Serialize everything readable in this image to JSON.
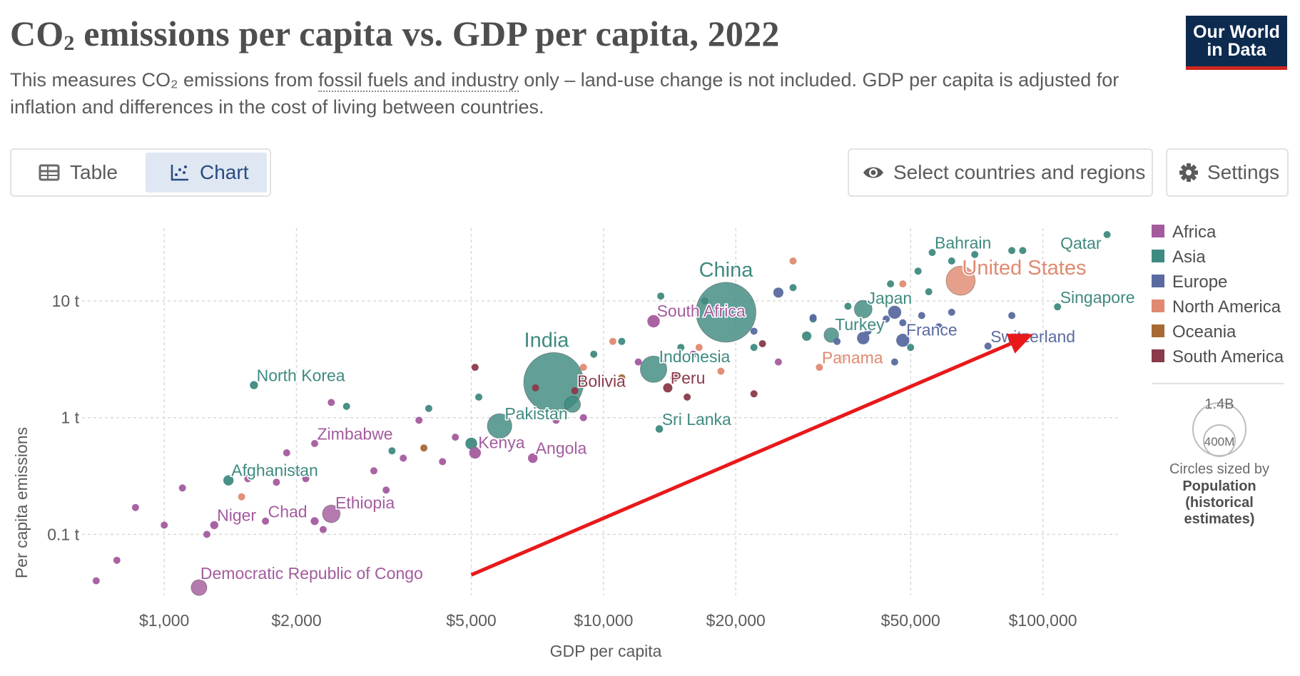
{
  "header": {
    "title": "CO₂ emissions per capita vs. GDP per capita, 2022",
    "subtitle_before": "This measures CO₂ emissions from ",
    "subtitle_link": "fossil fuels and industry",
    "subtitle_after": " only – land-use change is not included. GDP per capita is adjusted for inflation and differences in the cost of living between countries.",
    "logo_line1": "Our World",
    "logo_line2": "in Data"
  },
  "controls": {
    "tab_table": "Table",
    "tab_chart": "Chart",
    "select_label": "Select countries and regions",
    "settings_label": "Settings"
  },
  "colors": {
    "Africa": "#a45b9e",
    "Asia": "#3f8a80",
    "Europe": "#5a6aa0",
    "North America": "#e08a71",
    "Oceania": "#a86a34",
    "South America": "#8a3a4a",
    "arrow": "#e8191a"
  },
  "chart_data": {
    "type": "scatter",
    "title": "CO₂ emissions per capita vs. GDP per capita, 2022",
    "xlabel": "GDP per capita",
    "ylabel": "Per capita emissions",
    "x_scale": "log",
    "y_scale": "log",
    "xlim": [
      650,
      150000
    ],
    "ylim": [
      0.03,
      42
    ],
    "x_ticks": [
      {
        "value": 1000,
        "label": "$1,000"
      },
      {
        "value": 2000,
        "label": "$2,000"
      },
      {
        "value": 5000,
        "label": "$5,000"
      },
      {
        "value": 10000,
        "label": "$10,000"
      },
      {
        "value": 20000,
        "label": "$20,000"
      },
      {
        "value": 50000,
        "label": "$50,000"
      },
      {
        "value": 100000,
        "label": "$100,000"
      }
    ],
    "y_ticks": [
      {
        "value": 0.1,
        "label": "0.1 t"
      },
      {
        "value": 1,
        "label": "1 t"
      },
      {
        "value": 10,
        "label": "10 t"
      }
    ],
    "grid": true,
    "legend_position": "right",
    "legend": [
      "Africa",
      "Asia",
      "Europe",
      "North America",
      "Oceania",
      "South America"
    ],
    "size_legend": {
      "title": "Circles sized by",
      "variable_line1": "Population",
      "variable_line2": "(historical",
      "variable_line3": "estimates)",
      "large_label": "1.4B",
      "small_label": "400M"
    },
    "annotation": {
      "type": "arrow",
      "from": [
        5000,
        0.045
      ],
      "to": [
        95000,
        5.2
      ]
    },
    "labeled_points": [
      {
        "name": "Qatar",
        "gdp": 140000,
        "co2": 37,
        "pop_m": 2.7,
        "region": "Asia"
      },
      {
        "name": "Bahrain",
        "gdp": 56000,
        "co2": 26,
        "pop_m": 1.5,
        "region": "Asia"
      },
      {
        "name": "United States",
        "gdp": 65000,
        "co2": 14.9,
        "pop_m": 333,
        "region": "North America"
      },
      {
        "name": "China",
        "gdp": 19000,
        "co2": 8.0,
        "pop_m": 1425,
        "region": "Asia"
      },
      {
        "name": "Japan",
        "gdp": 39000,
        "co2": 8.5,
        "pop_m": 124,
        "region": "Asia"
      },
      {
        "name": "Singapore",
        "gdp": 108000,
        "co2": 8.9,
        "pop_m": 6,
        "region": "Asia"
      },
      {
        "name": "South Africa",
        "gdp": 13000,
        "co2": 6.7,
        "pop_m": 60,
        "region": "Africa"
      },
      {
        "name": "Turkey",
        "gdp": 33000,
        "co2": 5.1,
        "pop_m": 85,
        "region": "Asia"
      },
      {
        "name": "France",
        "gdp": 48000,
        "co2": 4.6,
        "pop_m": 68,
        "region": "Europe"
      },
      {
        "name": "Switzerland",
        "gdp": 75000,
        "co2": 4.1,
        "pop_m": 9,
        "region": "Europe"
      },
      {
        "name": "India",
        "gdp": 7700,
        "co2": 2.0,
        "pop_m": 1417,
        "region": "Asia"
      },
      {
        "name": "Indonesia",
        "gdp": 13000,
        "co2": 2.6,
        "pop_m": 275,
        "region": "Asia"
      },
      {
        "name": "Panama",
        "gdp": 31000,
        "co2": 2.7,
        "pop_m": 4.4,
        "region": "North America"
      },
      {
        "name": "Peru",
        "gdp": 14000,
        "co2": 1.8,
        "pop_m": 34,
        "region": "South America"
      },
      {
        "name": "Bolivia",
        "gdp": 8600,
        "co2": 1.7,
        "pop_m": 12,
        "region": "South America"
      },
      {
        "name": "North Korea",
        "gdp": 1600,
        "co2": 1.9,
        "pop_m": 26,
        "region": "Asia"
      },
      {
        "name": "Pakistan",
        "gdp": 5800,
        "co2": 0.85,
        "pop_m": 236,
        "region": "Asia"
      },
      {
        "name": "Sri Lanka",
        "gdp": 13400,
        "co2": 0.8,
        "pop_m": 22,
        "region": "Asia"
      },
      {
        "name": "Zimbabwe",
        "gdp": 2200,
        "co2": 0.6,
        "pop_m": 16,
        "region": "Africa"
      },
      {
        "name": "Kenya",
        "gdp": 5100,
        "co2": 0.5,
        "pop_m": 54,
        "region": "Africa"
      },
      {
        "name": "Angola",
        "gdp": 6900,
        "co2": 0.45,
        "pop_m": 36,
        "region": "Africa"
      },
      {
        "name": "Afghanistan",
        "gdp": 1400,
        "co2": 0.29,
        "pop_m": 41,
        "region": "Asia"
      },
      {
        "name": "Ethiopia",
        "gdp": 2400,
        "co2": 0.15,
        "pop_m": 123,
        "region": "Africa"
      },
      {
        "name": "Niger",
        "gdp": 1300,
        "co2": 0.12,
        "pop_m": 26,
        "region": "Africa"
      },
      {
        "name": "Chad",
        "gdp": 1700,
        "co2": 0.13,
        "pop_m": 18,
        "region": "Africa"
      },
      {
        "name": "Democratic Republic of Congo",
        "gdp": 1200,
        "co2": 0.035,
        "pop_m": 99,
        "region": "Africa"
      }
    ],
    "other_points": [
      {
        "gdp": 700,
        "co2": 0.04,
        "pop_m": 5,
        "region": "Africa"
      },
      {
        "gdp": 780,
        "co2": 0.06,
        "pop_m": 5,
        "region": "Africa"
      },
      {
        "gdp": 860,
        "co2": 0.17,
        "pop_m": 5,
        "region": "Africa"
      },
      {
        "gdp": 1000,
        "co2": 0.12,
        "pop_m": 5,
        "region": "Africa"
      },
      {
        "gdp": 1100,
        "co2": 0.25,
        "pop_m": 5,
        "region": "Africa"
      },
      {
        "gdp": 1250,
        "co2": 0.1,
        "pop_m": 5,
        "region": "Africa"
      },
      {
        "gdp": 1550,
        "co2": 0.3,
        "pop_m": 5,
        "region": "Africa"
      },
      {
        "gdp": 1800,
        "co2": 0.28,
        "pop_m": 5,
        "region": "Africa"
      },
      {
        "gdp": 1900,
        "co2": 0.5,
        "pop_m": 5,
        "region": "Africa"
      },
      {
        "gdp": 2100,
        "co2": 0.3,
        "pop_m": 5,
        "region": "Africa"
      },
      {
        "gdp": 2200,
        "co2": 0.13,
        "pop_m": 25,
        "region": "Africa"
      },
      {
        "gdp": 2300,
        "co2": 0.11,
        "pop_m": 5,
        "region": "Africa"
      },
      {
        "gdp": 2400,
        "co2": 1.35,
        "pop_m": 5,
        "region": "Africa"
      },
      {
        "gdp": 3000,
        "co2": 0.35,
        "pop_m": 5,
        "region": "Africa"
      },
      {
        "gdp": 3200,
        "co2": 0.24,
        "pop_m": 15,
        "region": "Africa"
      },
      {
        "gdp": 3500,
        "co2": 0.45,
        "pop_m": 5,
        "region": "Africa"
      },
      {
        "gdp": 3800,
        "co2": 0.95,
        "pop_m": 5,
        "region": "Africa"
      },
      {
        "gdp": 4300,
        "co2": 0.42,
        "pop_m": 5,
        "region": "Africa"
      },
      {
        "gdp": 4600,
        "co2": 0.68,
        "pop_m": 5,
        "region": "Africa"
      },
      {
        "gdp": 7800,
        "co2": 0.95,
        "pop_m": 5,
        "region": "Africa"
      },
      {
        "gdp": 9000,
        "co2": 1.0,
        "pop_m": 5,
        "region": "Africa"
      },
      {
        "gdp": 12000,
        "co2": 3.0,
        "pop_m": 5,
        "region": "Africa"
      },
      {
        "gdp": 16000,
        "co2": 3.5,
        "pop_m": 5,
        "region": "Africa"
      },
      {
        "gdp": 25000,
        "co2": 3.0,
        "pop_m": 5,
        "region": "Africa"
      },
      {
        "gdp": 2000,
        "co2": 0.36,
        "pop_m": 5,
        "region": "Asia"
      },
      {
        "gdp": 2600,
        "co2": 1.25,
        "pop_m": 5,
        "region": "Asia"
      },
      {
        "gdp": 3300,
        "co2": 0.52,
        "pop_m": 5,
        "region": "Asia"
      },
      {
        "gdp": 4000,
        "co2": 1.2,
        "pop_m": 5,
        "region": "Asia"
      },
      {
        "gdp": 5200,
        "co2": 1.5,
        "pop_m": 5,
        "region": "Asia"
      },
      {
        "gdp": 5000,
        "co2": 0.6,
        "pop_m": 55,
        "region": "Asia"
      },
      {
        "gdp": 8500,
        "co2": 1.3,
        "pop_m": 100,
        "region": "Asia"
      },
      {
        "gdp": 9500,
        "co2": 3.5,
        "pop_m": 5,
        "region": "Asia"
      },
      {
        "gdp": 11000,
        "co2": 4.5,
        "pop_m": 5,
        "region": "Asia"
      },
      {
        "gdp": 13500,
        "co2": 11.0,
        "pop_m": 5,
        "region": "Asia"
      },
      {
        "gdp": 15000,
        "co2": 4.0,
        "pop_m": 5,
        "region": "Asia"
      },
      {
        "gdp": 17000,
        "co2": 10.0,
        "pop_m": 5,
        "region": "Asia"
      },
      {
        "gdp": 22000,
        "co2": 4.0,
        "pop_m": 5,
        "region": "Asia"
      },
      {
        "gdp": 27000,
        "co2": 13.0,
        "pop_m": 5,
        "region": "Asia"
      },
      {
        "gdp": 29000,
        "co2": 5.0,
        "pop_m": 35,
        "region": "Asia"
      },
      {
        "gdp": 30000,
        "co2": 7.0,
        "pop_m": 5,
        "region": "Asia"
      },
      {
        "gdp": 36000,
        "co2": 9.0,
        "pop_m": 5,
        "region": "Asia"
      },
      {
        "gdp": 45000,
        "co2": 14.0,
        "pop_m": 5,
        "region": "Asia"
      },
      {
        "gdp": 52000,
        "co2": 18.0,
        "pop_m": 5,
        "region": "Asia"
      },
      {
        "gdp": 55000,
        "co2": 12.0,
        "pop_m": 5,
        "region": "Asia"
      },
      {
        "gdp": 62000,
        "co2": 22.0,
        "pop_m": 5,
        "region": "Asia"
      },
      {
        "gdp": 70000,
        "co2": 25.0,
        "pop_m": 5,
        "region": "Asia"
      },
      {
        "gdp": 85000,
        "co2": 27.0,
        "pop_m": 5,
        "region": "Asia"
      },
      {
        "gdp": 90000,
        "co2": 27.0,
        "pop_m": 5,
        "region": "Asia"
      },
      {
        "gdp": 50000,
        "co2": 4.0,
        "pop_m": 5,
        "region": "Asia"
      },
      {
        "gdp": 34000,
        "co2": 4.5,
        "pop_m": 5,
        "region": "Europe"
      },
      {
        "gdp": 37000,
        "co2": 6.0,
        "pop_m": 5,
        "region": "Europe"
      },
      {
        "gdp": 40000,
        "co2": 5.5,
        "pop_m": 5,
        "region": "Europe"
      },
      {
        "gdp": 44000,
        "co2": 7.0,
        "pop_m": 5,
        "region": "Europe"
      },
      {
        "gdp": 46000,
        "co2": 3.0,
        "pop_m": 5,
        "region": "Europe"
      },
      {
        "gdp": 48000,
        "co2": 6.5,
        "pop_m": 5,
        "region": "Europe"
      },
      {
        "gdp": 53000,
        "co2": 7.5,
        "pop_m": 5,
        "region": "Europe"
      },
      {
        "gdp": 58000,
        "co2": 6.0,
        "pop_m": 5,
        "region": "Europe"
      },
      {
        "gdp": 62000,
        "co2": 8.0,
        "pop_m": 5,
        "region": "Europe"
      },
      {
        "gdp": 85000,
        "co2": 7.5,
        "pop_m": 5,
        "region": "Europe"
      },
      {
        "gdp": 35000,
        "co2": 3.2,
        "pop_m": 5,
        "region": "Europe"
      },
      {
        "gdp": 30000,
        "co2": 7.2,
        "pop_m": 5,
        "region": "Europe"
      },
      {
        "gdp": 22000,
        "co2": 5.5,
        "pop_m": 5,
        "region": "Europe"
      },
      {
        "gdp": 25000,
        "co2": 11.8,
        "pop_m": 40,
        "region": "Europe"
      },
      {
        "gdp": 39000,
        "co2": 4.8,
        "pop_m": 60,
        "region": "Europe"
      },
      {
        "gdp": 46000,
        "co2": 8.0,
        "pop_m": 68,
        "region": "Europe"
      },
      {
        "gdp": 1500,
        "co2": 0.21,
        "pop_m": 5,
        "region": "North America"
      },
      {
        "gdp": 9000,
        "co2": 2.7,
        "pop_m": 5,
        "region": "North America"
      },
      {
        "gdp": 10500,
        "co2": 4.5,
        "pop_m": 5,
        "region": "North America"
      },
      {
        "gdp": 16500,
        "co2": 4.0,
        "pop_m": 5,
        "region": "North America"
      },
      {
        "gdp": 18500,
        "co2": 2.5,
        "pop_m": 5,
        "region": "North America"
      },
      {
        "gdp": 27000,
        "co2": 22.0,
        "pop_m": 5,
        "region": "North America"
      },
      {
        "gdp": 48000,
        "co2": 14.0,
        "pop_m": 5,
        "region": "North America"
      },
      {
        "gdp": 22000,
        "co2": 1.6,
        "pop_m": 5,
        "region": "South America"
      },
      {
        "gdp": 5100,
        "co2": 2.7,
        "pop_m": 5,
        "region": "South America"
      },
      {
        "gdp": 7000,
        "co2": 1.8,
        "pop_m": 5,
        "region": "South America"
      },
      {
        "gdp": 14500,
        "co2": 2.2,
        "pop_m": 25,
        "region": "South America"
      },
      {
        "gdp": 15500,
        "co2": 1.5,
        "pop_m": 5,
        "region": "South America"
      },
      {
        "gdp": 23000,
        "co2": 4.3,
        "pop_m": 5,
        "region": "South America"
      },
      {
        "gdp": 3900,
        "co2": 0.55,
        "pop_m": 5,
        "region": "Oceania"
      },
      {
        "gdp": 11000,
        "co2": 2.2,
        "pop_m": 5,
        "region": "Oceania"
      }
    ]
  }
}
